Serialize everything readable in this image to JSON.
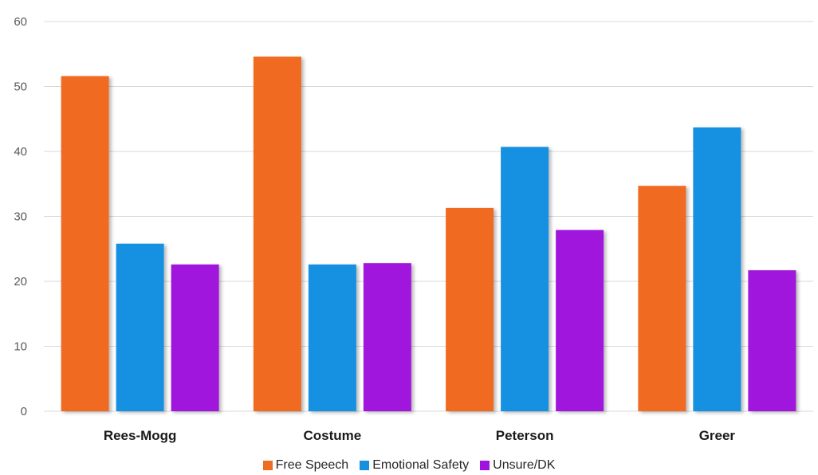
{
  "chart_data": {
    "type": "bar",
    "title": "",
    "xlabel": "",
    "ylabel": "",
    "categories": [
      "Rees-Mogg",
      "Costume",
      "Peterson",
      "Greer"
    ],
    "series": [
      {
        "name": "Free Speech",
        "color": "#F06B22",
        "values": [
          51.6,
          54.6,
          31.3,
          34.7
        ]
      },
      {
        "name": "Emotional Safety",
        "color": "#1890E0",
        "values": [
          25.8,
          22.6,
          40.7,
          43.7
        ]
      },
      {
        "name": "Unsure/DK",
        "color": "#A012DD",
        "values": [
          22.6,
          22.8,
          27.9,
          21.7
        ]
      }
    ],
    "ylim": [
      0,
      60
    ],
    "yticks": [
      0,
      10,
      20,
      30,
      40,
      50,
      60
    ],
    "grid": true,
    "legend_position": "bottom"
  }
}
